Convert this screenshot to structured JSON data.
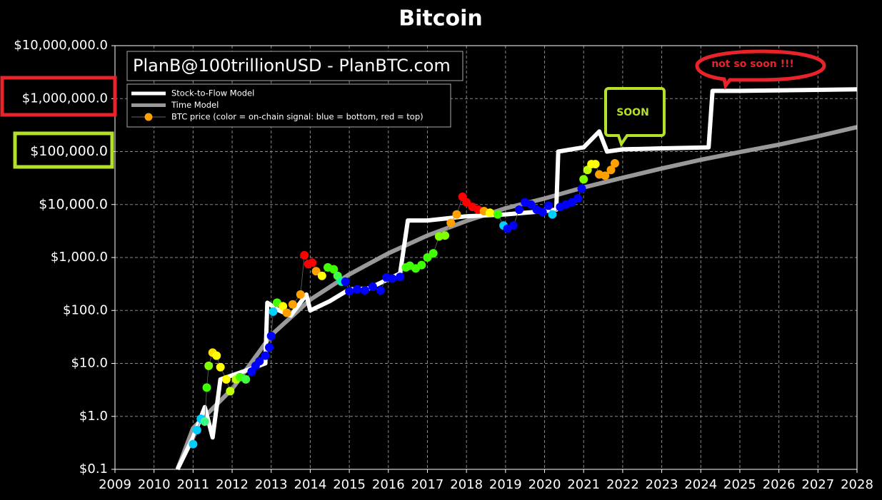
{
  "chart_data": {
    "type": "line",
    "title": "Bitcoin",
    "log_scale": true,
    "grid": true,
    "watermark": "PlanB@100trillionUSD - PlanBTC.com",
    "annotations": [
      "SOON",
      "not so soon !!!"
    ],
    "xlim": [
      2009,
      2028
    ],
    "xticks": [
      2009,
      2010,
      2011,
      2012,
      2013,
      2014,
      2015,
      2016,
      2017,
      2018,
      2019,
      2020,
      2021,
      2022,
      2023,
      2024,
      2025,
      2026,
      2027,
      2028
    ],
    "ylim": [
      0.1,
      10000000
    ],
    "yticks": [
      {
        "value": 0.1,
        "label": "$0.1"
      },
      {
        "value": 1,
        "label": "$1.0"
      },
      {
        "value": 10,
        "label": "$10.0"
      },
      {
        "value": 100,
        "label": "$100.0"
      },
      {
        "value": 1000,
        "label": "$1,000.0"
      },
      {
        "value": 10000,
        "label": "$10,000.0"
      },
      {
        "value": 100000,
        "label": "$100,000.0"
      },
      {
        "value": 1000000,
        "label": "$1,000,000.0"
      },
      {
        "value": 10000000,
        "label": "$10,000,000.0"
      }
    ],
    "series": [
      {
        "name": "Stock-to-Flow Model",
        "type": "line",
        "color": "#ffffff",
        "x": [
          2010.6,
          2011.0,
          2011.3,
          2011.5,
          2011.7,
          2012.5,
          2012.85,
          2012.9,
          2013.2,
          2013.5,
          2013.9,
          2014.0,
          2014.5,
          2015.0,
          2015.5,
          2016.3,
          2016.5,
          2017.0,
          2018.0,
          2019.0,
          2020.0,
          2020.3,
          2020.35,
          2021.0,
          2021.4,
          2021.6,
          2022.0,
          2023.0,
          2024.2,
          2024.3,
          2025.0,
          2028.0
        ],
        "values": [
          0.1,
          0.4,
          1.5,
          0.4,
          5,
          8,
          10,
          140,
          100,
          80,
          200,
          100,
          150,
          250,
          260,
          500,
          5000,
          5000,
          6000,
          6500,
          7500,
          8000,
          100000,
          120000,
          240000,
          100000,
          110000,
          115000,
          120000,
          1400000,
          1400000,
          1500000
        ]
      },
      {
        "name": "Time Model",
        "type": "line",
        "color": "#999999",
        "x": [
          2010.6,
          2011,
          2012,
          2013,
          2014,
          2015,
          2016,
          2017,
          2018,
          2019,
          2020,
          2021,
          2022,
          2023,
          2024,
          2025,
          2026,
          2027,
          2028
        ],
        "values": [
          0.1,
          0.6,
          3.3,
          34,
          160,
          480,
          1200,
          2600,
          4900,
          8500,
          13000,
          21000,
          32000,
          48000,
          70000,
          98000,
          135000,
          195000,
          290000
        ]
      },
      {
        "name": "BTC price (color = on-chain signal: blue = bottom, red = top)",
        "type": "scatter",
        "color": "#ffa000",
        "x": [
          2011.0,
          2011.1,
          2011.2,
          2011.3,
          2011.35,
          2011.4,
          2011.5,
          2011.6,
          2011.7,
          2011.85,
          2011.95,
          2012.1,
          2012.2,
          2012.35,
          2012.5,
          2012.6,
          2012.7,
          2012.85,
          2012.95,
          2013.0,
          2013.05,
          2013.15,
          2013.3,
          2013.4,
          2013.55,
          2013.75,
          2013.85,
          2013.95,
          2014.05,
          2014.15,
          2014.3,
          2014.45,
          2014.6,
          2014.7,
          2014.8,
          2014.9,
          2015.0,
          2015.2,
          2015.4,
          2015.6,
          2015.8,
          2015.95,
          2016.1,
          2016.3,
          2016.45,
          2016.55,
          2016.7,
          2016.85,
          2017.0,
          2017.15,
          2017.3,
          2017.45,
          2017.6,
          2017.75,
          2017.9,
          2018.0,
          2018.15,
          2018.3,
          2018.45,
          2018.6,
          2018.8,
          2018.95,
          2019.05,
          2019.2,
          2019.35,
          2019.5,
          2019.65,
          2019.8,
          2019.95,
          2020.1,
          2020.2,
          2020.4,
          2020.55,
          2020.7,
          2020.85,
          2020.95,
          2021.0,
          2021.1,
          2021.2,
          2021.3,
          2021.4,
          2021.55,
          2021.7,
          2021.8
        ],
        "values": [
          0.3,
          0.55,
          0.9,
          0.8,
          3.5,
          9,
          16,
          14,
          8.5,
          5,
          3,
          5,
          5.5,
          5,
          7,
          9,
          11,
          14,
          20,
          33,
          95,
          140,
          120,
          90,
          130,
          200,
          1100,
          750,
          800,
          550,
          450,
          650,
          600,
          450,
          350,
          350,
          230,
          250,
          240,
          280,
          240,
          420,
          400,
          430,
          650,
          700,
          620,
          720,
          1000,
          1200,
          2500,
          2600,
          4500,
          6500,
          14000,
          11000,
          9000,
          8000,
          7500,
          7000,
          6500,
          4000,
          3500,
          4000,
          8000,
          11000,
          10000,
          8000,
          7200,
          9500,
          6500,
          9000,
          10000,
          11000,
          13000,
          20000,
          30000,
          45000,
          58000,
          58000,
          37000,
          35000,
          45000,
          60000
        ],
        "colors": [
          "#00d0ff",
          "#00d0ff",
          "#00d0ff",
          "#40ff80",
          "#40ff00",
          "#80ff00",
          "#ffe000",
          "#ffff00",
          "#ffff00",
          "#ffff00",
          "#c0ff00",
          "#c0ff00",
          "#40ff00",
          "#40ff40",
          "#0000ff",
          "#0000ff",
          "#0000ff",
          "#0000ff",
          "#0000ff",
          "#0000ff",
          "#00d0ff",
          "#40ff00",
          "#ffff00",
          "#ffa000",
          "#ffa000",
          "#ffa000",
          "#ff0000",
          "#ff0000",
          "#ff0000",
          "#ffa000",
          "#ffff00",
          "#40ff00",
          "#40ff00",
          "#40ff40",
          "#00ffa0",
          "#0000ff",
          "#0000ff",
          "#0000ff",
          "#0000ff",
          "#0000ff",
          "#0000ff",
          "#0000ff",
          "#0000ff",
          "#0000ff",
          "#40ff00",
          "#40ff00",
          "#40ff00",
          "#40ff00",
          "#40ff00",
          "#40ff00",
          "#80ff00",
          "#80ff00",
          "#ffa000",
          "#ffa000",
          "#ff0000",
          "#ff0000",
          "#ff0000",
          "#ff0000",
          "#ffa000",
          "#ffff00",
          "#40ff00",
          "#00d0ff",
          "#0000ff",
          "#0000ff",
          "#0000ff",
          "#0000ff",
          "#0000ff",
          "#0000ff",
          "#0000ff",
          "#0000ff",
          "#00d0ff",
          "#0000ff",
          "#0000ff",
          "#0000ff",
          "#0000ff",
          "#0000ff",
          "#80ff00",
          "#c0ff00",
          "#ffff00",
          "#ffff00",
          "#ffa000",
          "#ffa000",
          "#ffa000",
          "#ffa000"
        ]
      }
    ],
    "legend_position": "upper left"
  }
}
